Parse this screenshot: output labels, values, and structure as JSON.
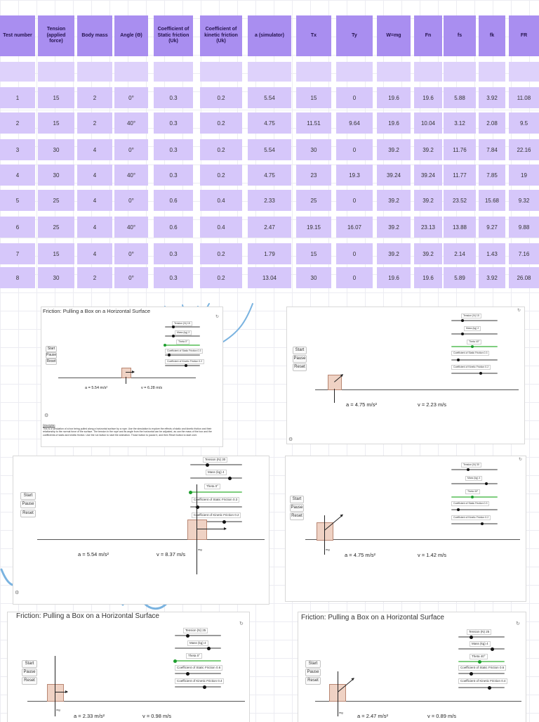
{
  "table": {
    "headers": [
      "Test number",
      "Tension (applied force)",
      "Body mass",
      "Angle (Θ)",
      "Coefficient of Static friction (Uk)",
      "Coefficient of kinetic friction (Uk)",
      "a (simulator)",
      "Tx",
      "Ty",
      "W=mg",
      "Fn",
      "fs",
      "fk",
      "FR"
    ],
    "rows": [
      [
        "1",
        "15",
        "2",
        "0°",
        "0.3",
        "0.2",
        "5.54",
        "15",
        "0",
        "19.6",
        "19.6",
        "5.88",
        "3.92",
        "11.08"
      ],
      [
        "2",
        "15",
        "2",
        "40°",
        "0.3",
        "0.2",
        "4.75",
        "11.51",
        "9.64",
        "19.6",
        "10.04",
        "3.12",
        "2.08",
        "9.5"
      ],
      [
        "3",
        "30",
        "4",
        "0°",
        "0.3",
        "0.2",
        "5.54",
        "30",
        "0",
        "39.2",
        "39.2",
        "11.76",
        "7.84",
        "22.16"
      ],
      [
        "4",
        "30",
        "4",
        "40°",
        "0.3",
        "0.2",
        "4.75",
        "23",
        "19.3",
        "39.24",
        "39.24",
        "11.77",
        "7.85",
        "19"
      ],
      [
        "5",
        "25",
        "4",
        "0°",
        "0.6",
        "0.4",
        "2.33",
        "25",
        "0",
        "39.2",
        "39.2",
        "23.52",
        "15.68",
        "9.32"
      ],
      [
        "6",
        "25",
        "4",
        "40°",
        "0.6",
        "0.4",
        "2.47",
        "19.15",
        "16.07",
        "39.2",
        "23.13",
        "13.88",
        "9.27",
        "9.88"
      ],
      [
        "7",
        "15",
        "4",
        "0°",
        "0.3",
        "0.2",
        "1.79",
        "15",
        "0",
        "39.2",
        "39.2",
        "2.14",
        "1.43",
        "7.16"
      ],
      [
        "8",
        "30",
        "2",
        "0°",
        "0.3",
        "0.2",
        "13.04",
        "30",
        "0",
        "19.6",
        "19.6",
        "5.89",
        "3.92",
        "26.08"
      ]
    ]
  },
  "sim": {
    "title": "Friction: Pulling a Box on a Horizontal Surface",
    "start": "Start",
    "pause": "Pause",
    "reset": "Reset",
    "coef_static_label": "Coefficient of Static Friction",
    "coef_kinetic_label": "Coefficient of Kinetic Friction",
    "description_heading": "Description",
    "description": "This is a simulation of a box being pulled along a horizontal surface by a rope. Use the simulation to explore the effects of static and kinetic friction and their relationship to the normal force of the surface. The tension in the rope and its angle from the horizontal can be adjusted, as can the mass of the box and the coefficients of static and kinetic friction. Use the run button to start the animation. Those button to pause it, and then Reset button to start over.",
    "mg_label": "mg",
    "rotate_icon": "↻",
    "gear_icon": "⚙",
    "panels": [
      {
        "tension": "Tension (N) 15",
        "mass": "Mass (kg) 2",
        "theta": "Theta 0°",
        "mus": "0.3",
        "muk": "0.2",
        "a": "a = 5.54 m/s²",
        "v": "v = 6.28 m/s"
      },
      {
        "tension": "Tension (N) 15",
        "mass": "Mass (kg) 2",
        "theta": "Theta 40°",
        "mus": "0.3",
        "muk": "0.2",
        "a": "a = 4.75 m/s²",
        "v": "v = 2.23 m/s"
      },
      {
        "tension": "Tension (N) 30",
        "mass": "Mass (kg) 4",
        "theta": "Theta 0°",
        "mus": "0.3",
        "muk": "0.2",
        "a": "a = 5.54 m/s²",
        "v": "v = 8.37 m/s"
      },
      {
        "tension": "Tension (N) 30",
        "mass": "Mass (kg) 4",
        "theta": "Theta 40°",
        "mus": "0.3",
        "muk": "0.2",
        "a": "a = 4.75 m/s²",
        "v": "v = 1.42 m/s"
      },
      {
        "tension": "Tension (N) 25",
        "mass": "Mass (kg) 4",
        "theta": "Theta 0°",
        "mus": "0.6",
        "muk": "0.4",
        "a": "a = 2.33 m/s²",
        "v": "v = 0.98 m/s"
      },
      {
        "tension": "Tension (N) 25",
        "mass": "Mass (kg) 4",
        "theta": "Theta 40°",
        "mus": "0.6",
        "muk": "0.4",
        "a": "a = 2.47 m/s²",
        "v": "v = 0.89 m/s"
      }
    ]
  }
}
